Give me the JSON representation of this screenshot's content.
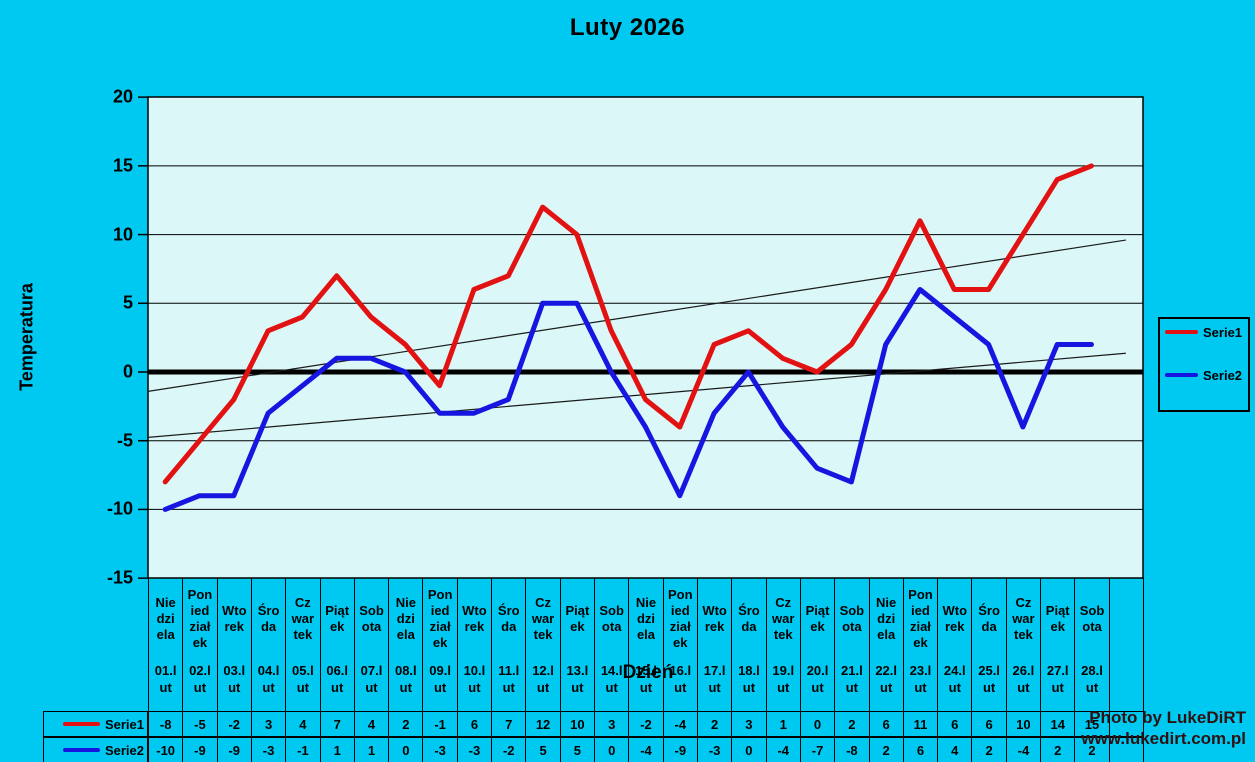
{
  "title": "Luty 2026",
  "colors": {
    "background": "#00c9f1",
    "plot_background": "#dbf7f8",
    "serie1": "#e21212",
    "serie2": "#1616e0",
    "grid": "#000000",
    "trendline": "#1a1a1a",
    "watermark": "#301111"
  },
  "y_axis": {
    "label": "Temperatura",
    "ticks": [
      20,
      15,
      10,
      5,
      0,
      -5,
      -10,
      -15
    ]
  },
  "x_axis": {
    "label": "Dzień"
  },
  "legend": {
    "entries": [
      {
        "label": "Serie1"
      },
      {
        "label": "Serie2"
      }
    ]
  },
  "watermark": {
    "line1": "Photo by LukeDiRT",
    "line2": "www.lukedirt.com.pl"
  },
  "weekday_wraps": {
    "Niedziela": "Nie\ndzi\nela",
    "Poniedziałek": "Pon\nied\nział\nek",
    "Wtorek": "Wto\nrek",
    "Środa": "Śro\nda",
    "Czwartek": "Cz\nwar\ntek",
    "Piątek": "Piąt\nek",
    "Sobota": "Sob\nota"
  },
  "chart_data": {
    "type": "line",
    "title": "Luty 2026",
    "xlabel": "Dzień",
    "ylabel": "Temperatura",
    "ylim": [
      -15,
      20
    ],
    "ytick_step": 5,
    "grid": true,
    "legend_position": "right",
    "categories": [
      {
        "weekday": "Niedziela",
        "date": "01.lut"
      },
      {
        "weekday": "Poniedziałek",
        "date": "02.lut"
      },
      {
        "weekday": "Wtorek",
        "date": "03.lut"
      },
      {
        "weekday": "Środa",
        "date": "04.lut"
      },
      {
        "weekday": "Czwartek",
        "date": "05.lut"
      },
      {
        "weekday": "Piątek",
        "date": "06.lut"
      },
      {
        "weekday": "Sobota",
        "date": "07.lut"
      },
      {
        "weekday": "Niedziela",
        "date": "08.lut"
      },
      {
        "weekday": "Poniedziałek",
        "date": "09.lut"
      },
      {
        "weekday": "Wtorek",
        "date": "10.lut"
      },
      {
        "weekday": "Środa",
        "date": "11.lut"
      },
      {
        "weekday": "Czwartek",
        "date": "12.lut"
      },
      {
        "weekday": "Piątek",
        "date": "13.lut"
      },
      {
        "weekday": "Sobota",
        "date": "14.lut"
      },
      {
        "weekday": "Niedziela",
        "date": "15.lut"
      },
      {
        "weekday": "Poniedziałek",
        "date": "16.lut"
      },
      {
        "weekday": "Wtorek",
        "date": "17.lut"
      },
      {
        "weekday": "Środa",
        "date": "18.lut"
      },
      {
        "weekday": "Czwartek",
        "date": "19.lut"
      },
      {
        "weekday": "Piątek",
        "date": "20.lut"
      },
      {
        "weekday": "Sobota",
        "date": "21.lut"
      },
      {
        "weekday": "Niedziela",
        "date": "22.lut"
      },
      {
        "weekday": "Poniedziałek",
        "date": "23.lut"
      },
      {
        "weekday": "Wtorek",
        "date": "24.lut"
      },
      {
        "weekday": "Środa",
        "date": "25.lut"
      },
      {
        "weekday": "Czwartek",
        "date": "26.lut"
      },
      {
        "weekday": "Piątek",
        "date": "27.lut"
      },
      {
        "weekday": "Sobota",
        "date": "28.lut"
      }
    ],
    "series": [
      {
        "name": "Serie1",
        "color_key": "serie1",
        "values": [
          -8,
          -5,
          -2,
          3,
          4,
          7,
          4,
          2,
          -1,
          6,
          7,
          12,
          10,
          3,
          -2,
          -4,
          2,
          3,
          1,
          0,
          2,
          6,
          11,
          6,
          6,
          10,
          14,
          15
        ]
      },
      {
        "name": "Serie2",
        "color_key": "serie2",
        "values": [
          -10,
          -9,
          -9,
          -3,
          -1,
          1,
          1,
          0,
          -3,
          -3,
          -2,
          5,
          5,
          0,
          -4,
          -9,
          -3,
          0,
          -4,
          -7,
          -8,
          2,
          6,
          4,
          2,
          -4,
          2,
          2
        ]
      }
    ],
    "trendlines": [
      {
        "series": "Serie1",
        "slope": 0.3864,
        "intercept": -1.603
      },
      {
        "series": "Serie2",
        "slope": 0.2148,
        "intercept": -4.865
      }
    ]
  }
}
